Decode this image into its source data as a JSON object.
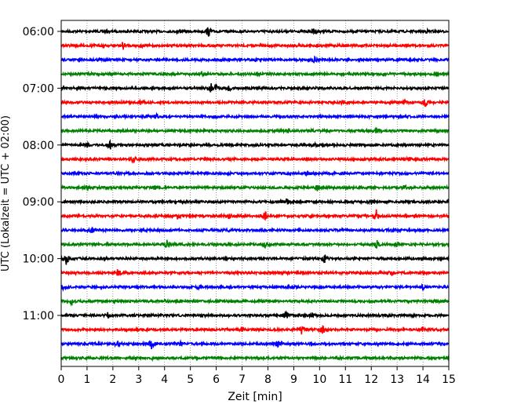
{
  "chart_data": {
    "type": "line",
    "title": "",
    "xlabel": "Zeit  [min]",
    "ylabel": "UTC (Lokalzeit = UTC + 02:00)",
    "xlim": [
      0,
      15
    ],
    "x_ticks": [
      0,
      1,
      2,
      3,
      4,
      5,
      6,
      7,
      8,
      9,
      10,
      11,
      12,
      13,
      14,
      15
    ],
    "x_grid": "dotted vertical lines at each minute",
    "trace_interval_min": 15,
    "first_trace_utc": "06:00",
    "y_tick_labels": [
      {
        "label": "06:00",
        "trace_index": 0
      },
      {
        "label": "07:00",
        "trace_index": 4
      },
      {
        "label": "08:00",
        "trace_index": 8
      },
      {
        "label": "09:00",
        "trace_index": 12
      },
      {
        "label": "10:00",
        "trace_index": 16
      },
      {
        "label": "11:00",
        "trace_index": 20
      }
    ],
    "color_cycle": [
      "#000000",
      "#ff0000",
      "#0000ff",
      "#008000"
    ],
    "series": [
      {
        "start": "06:00",
        "color": "#000000",
        "events": [
          [
            4.5,
            2
          ],
          [
            5.7,
            6
          ],
          [
            9.8,
            5
          ],
          [
            14.2,
            2
          ]
        ]
      },
      {
        "start": "06:15",
        "color": "#ff0000",
        "events": [
          [
            2.4,
            5
          ],
          [
            3.1,
            2
          ],
          [
            9.2,
            2
          ]
        ]
      },
      {
        "start": "06:30",
        "color": "#0000ff",
        "events": [
          [
            1.5,
            2
          ],
          [
            7.5,
            2
          ],
          [
            9.8,
            3
          ]
        ]
      },
      {
        "start": "06:45",
        "color": "#008000",
        "events": [
          [
            5.5,
            2
          ],
          [
            12.5,
            2
          ]
        ]
      },
      {
        "start": "07:00",
        "color": "#000000",
        "events": [
          [
            5.8,
            6
          ],
          [
            6.0,
            5
          ],
          [
            6.5,
            4
          ],
          [
            7.1,
            2
          ]
        ]
      },
      {
        "start": "07:15",
        "color": "#ff0000",
        "events": [
          [
            3.1,
            3
          ],
          [
            10.9,
            3
          ],
          [
            13.3,
            3
          ],
          [
            14.1,
            6
          ]
        ]
      },
      {
        "start": "07:30",
        "color": "#0000ff",
        "events": [
          [
            3.3,
            3
          ],
          [
            3.7,
            3
          ],
          [
            6.0,
            2
          ]
        ]
      },
      {
        "start": "07:45",
        "color": "#008000",
        "events": [
          [
            8.8,
            2
          ],
          [
            12.2,
            3
          ]
        ]
      },
      {
        "start": "08:00",
        "color": "#000000",
        "events": [
          [
            1.0,
            2
          ],
          [
            1.9,
            5
          ],
          [
            9.8,
            2
          ]
        ]
      },
      {
        "start": "08:15",
        "color": "#ff0000",
        "events": [
          [
            2.8,
            5
          ],
          [
            13.5,
            2
          ]
        ]
      },
      {
        "start": "08:30",
        "color": "#0000ff",
        "events": [
          [
            0.4,
            2
          ],
          [
            9.5,
            2
          ]
        ]
      },
      {
        "start": "08:45",
        "color": "#008000",
        "events": [
          [
            1.0,
            2
          ],
          [
            3.6,
            3
          ],
          [
            9.9,
            5
          ],
          [
            13.3,
            3
          ]
        ]
      },
      {
        "start": "09:00",
        "color": "#000000",
        "events": [
          [
            8.7,
            5
          ],
          [
            12.0,
            2
          ]
        ]
      },
      {
        "start": "09:15",
        "color": "#ff0000",
        "events": [
          [
            4.5,
            3
          ],
          [
            6.5,
            3
          ],
          [
            7.9,
            5
          ],
          [
            12.2,
            9
          ]
        ]
      },
      {
        "start": "09:30",
        "color": "#0000ff",
        "events": [
          [
            1.2,
            3
          ],
          [
            6.5,
            2
          ],
          [
            12.8,
            3
          ]
        ]
      },
      {
        "start": "09:45",
        "color": "#008000",
        "events": [
          [
            4.1,
            5
          ],
          [
            7.9,
            4
          ],
          [
            12.2,
            6
          ],
          [
            13.0,
            4
          ]
        ]
      },
      {
        "start": "10:00",
        "color": "#000000",
        "events": [
          [
            0.2,
            7
          ],
          [
            10.2,
            5
          ],
          [
            11.8,
            2
          ]
        ]
      },
      {
        "start": "10:15",
        "color": "#ff0000",
        "events": [
          [
            2.2,
            5
          ],
          [
            8.0,
            2
          ],
          [
            12.8,
            3
          ]
        ]
      },
      {
        "start": "10:30",
        "color": "#0000ff",
        "events": [
          [
            0.1,
            4
          ],
          [
            5.3,
            5
          ],
          [
            9.0,
            2
          ],
          [
            14.0,
            4
          ]
        ]
      },
      {
        "start": "10:45",
        "color": "#008000",
        "events": [
          [
            0.4,
            3
          ],
          [
            4.0,
            2
          ],
          [
            14.5,
            2
          ]
        ]
      },
      {
        "start": "11:00",
        "color": "#000000",
        "events": [
          [
            1.8,
            3
          ],
          [
            8.7,
            5
          ],
          [
            9.7,
            3
          ],
          [
            12.5,
            2
          ]
        ]
      },
      {
        "start": "11:15",
        "color": "#ff0000",
        "events": [
          [
            7.0,
            2
          ],
          [
            9.3,
            6
          ],
          [
            10.1,
            9
          ],
          [
            14.0,
            4
          ]
        ]
      },
      {
        "start": "11:30",
        "color": "#0000ff",
        "events": [
          [
            2.2,
            5
          ],
          [
            3.5,
            7
          ],
          [
            4.6,
            3
          ],
          [
            8.4,
            5
          ]
        ]
      },
      {
        "start": "11:45",
        "color": "#008000",
        "events": [
          [
            3.5,
            2
          ],
          [
            10.7,
            2
          ]
        ]
      }
    ]
  }
}
